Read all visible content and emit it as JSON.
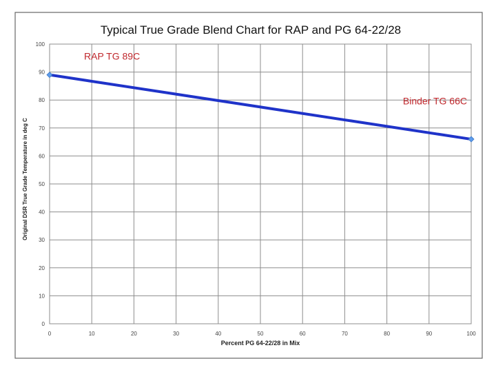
{
  "chart_data": {
    "type": "line",
    "title": "Typical True Grade Blend Chart for RAP and PG 64-22/28",
    "xlabel": "Percent PG 64-22/28 in Mix",
    "ylabel": "Original DSR True Grade Temperature in deg C",
    "xlim": [
      0,
      100
    ],
    "ylim": [
      0,
      100
    ],
    "x_ticks": [
      "0",
      "10",
      "20",
      "30",
      "40",
      "50",
      "60",
      "70",
      "80",
      "90",
      "100"
    ],
    "y_ticks": [
      "0",
      "10",
      "20",
      "30",
      "40",
      "50",
      "60",
      "70",
      "80",
      "90",
      "100"
    ],
    "grid": true,
    "legend": "none",
    "series": [
      {
        "color": "#1f33c9",
        "x": [
          0,
          100
        ],
        "y": [
          89,
          66
        ]
      }
    ],
    "annotations": [
      {
        "text": "RAP TG 89C",
        "color": "#c0282d"
      },
      {
        "text": "Binder TG 66C",
        "color": "#c0282d"
      }
    ]
  }
}
